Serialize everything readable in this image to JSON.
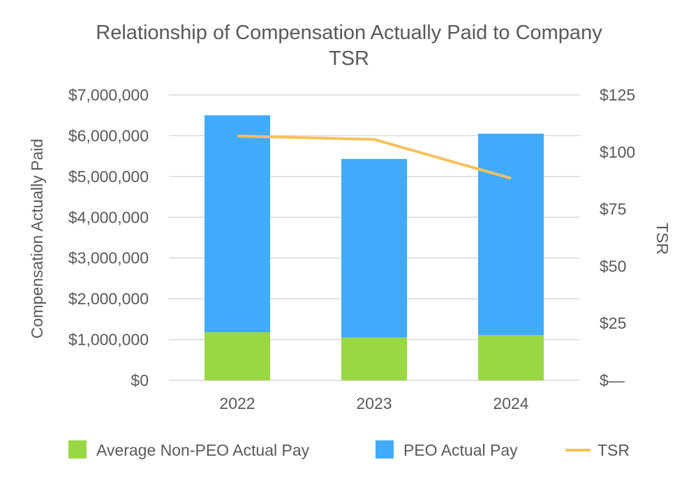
{
  "chart_data": {
    "type": "bar",
    "stacked": true,
    "title": "Relationship of Compensation Actually Paid to Company TSR",
    "title_lines": [
      "Relationship of Compensation Actually Paid to Company",
      "TSR"
    ],
    "categories": [
      "2022",
      "2023",
      "2024"
    ],
    "ylabel": "Compensation Actually Paid",
    "y2label": "TSR",
    "ylim": [
      0,
      7000000
    ],
    "y2lim": [
      0,
      125
    ],
    "y_ticks": [
      0,
      1000000,
      2000000,
      3000000,
      4000000,
      5000000,
      6000000,
      7000000
    ],
    "y_tick_labels": [
      "$0",
      "$1,000,000",
      "$2,000,000",
      "$3,000,000",
      "$4,000,000",
      "$5,000,000",
      "$6,000,000",
      "$7,000,000"
    ],
    "y2_ticks": [
      0,
      25,
      50,
      75,
      100,
      125
    ],
    "y2_tick_labels": [
      "$—",
      "$25",
      "$50",
      "$75",
      "$100",
      "$125"
    ],
    "grid": true,
    "legend_position": "bottom",
    "series": [
      {
        "name": "Average Non-PEO Actual Pay",
        "type": "bar",
        "color": "#99d843",
        "values": [
          1180000,
          1050000,
          1110000
        ]
      },
      {
        "name": "PEO Actual Pay",
        "type": "bar",
        "color": "#40abff",
        "values": [
          5320000,
          4380000,
          4940000
        ]
      },
      {
        "name": "TSR",
        "type": "line",
        "axis": "right",
        "color": "#f5c15b",
        "values": [
          107,
          105.5,
          88.5
        ]
      }
    ]
  }
}
